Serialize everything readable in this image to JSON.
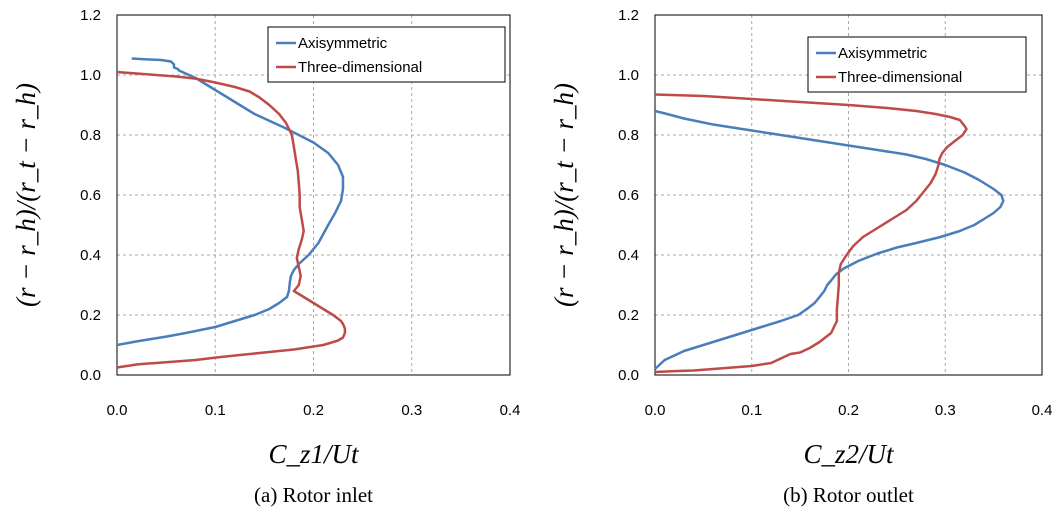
{
  "chart_data": [
    {
      "type": "line",
      "caption": "(a) Rotor inlet",
      "xlabel": "C_z1/Ut",
      "ylabel": "(r − r_h)/(r_t − r_h)",
      "xlim": [
        0,
        0.4
      ],
      "ylim": [
        0,
        1.2
      ],
      "xticks": [
        "0.0",
        "0.1",
        "0.2",
        "0.3",
        "0.4"
      ],
      "yticks": [
        "0.0",
        "0.2",
        "0.4",
        "0.6",
        "0.8",
        "1.0",
        "1.2"
      ],
      "grid": true,
      "legend_position": "top-right",
      "series": [
        {
          "name": "Axisymmetric",
          "color": "#4a7ebb",
          "points": [
            [
              0.015,
              1.055
            ],
            [
              0.03,
              1.052
            ],
            [
              0.045,
              1.05
            ],
            [
              0.055,
              1.045
            ],
            [
              0.058,
              1.035
            ],
            [
              0.058,
              1.025
            ],
            [
              0.062,
              1.02
            ],
            [
              0.063,
              1.015
            ],
            [
              0.07,
              1.005
            ],
            [
              0.08,
              0.99
            ],
            [
              0.1,
              0.95
            ],
            [
              0.12,
              0.91
            ],
            [
              0.14,
              0.87
            ],
            [
              0.17,
              0.825
            ],
            [
              0.2,
              0.775
            ],
            [
              0.215,
              0.74
            ],
            [
              0.225,
              0.7
            ],
            [
              0.23,
              0.66
            ],
            [
              0.23,
              0.62
            ],
            [
              0.228,
              0.58
            ],
            [
              0.222,
              0.54
            ],
            [
              0.215,
              0.5
            ],
            [
              0.21,
              0.47
            ],
            [
              0.205,
              0.44
            ],
            [
              0.195,
              0.4
            ],
            [
              0.185,
              0.37
            ],
            [
              0.18,
              0.35
            ],
            [
              0.177,
              0.33
            ],
            [
              0.176,
              0.31
            ],
            [
              0.175,
              0.28
            ],
            [
              0.173,
              0.26
            ],
            [
              0.165,
              0.24
            ],
            [
              0.155,
              0.22
            ],
            [
              0.14,
              0.2
            ],
            [
              0.12,
              0.18
            ],
            [
              0.1,
              0.16
            ],
            [
              0.07,
              0.14
            ],
            [
              0.05,
              0.128
            ],
            [
              0.02,
              0.112
            ],
            [
              0,
              0.1
            ]
          ]
        },
        {
          "name": "Three-dimensional",
          "color": "#be4b48",
          "points": [
            [
              0,
              1.01
            ],
            [
              0.02,
              1.005
            ],
            [
              0.04,
              1.0
            ],
            [
              0.06,
              0.995
            ],
            [
              0.08,
              0.988
            ],
            [
              0.1,
              0.975
            ],
            [
              0.12,
              0.96
            ],
            [
              0.135,
              0.945
            ],
            [
              0.145,
              0.925
            ],
            [
              0.155,
              0.9
            ],
            [
              0.165,
              0.87
            ],
            [
              0.172,
              0.84
            ],
            [
              0.178,
              0.8
            ],
            [
              0.18,
              0.76
            ],
            [
              0.182,
              0.72
            ],
            [
              0.184,
              0.68
            ],
            [
              0.185,
              0.64
            ],
            [
              0.186,
              0.6
            ],
            [
              0.186,
              0.56
            ],
            [
              0.188,
              0.52
            ],
            [
              0.19,
              0.48
            ],
            [
              0.188,
              0.45
            ],
            [
              0.185,
              0.42
            ],
            [
              0.183,
              0.39
            ],
            [
              0.185,
              0.36
            ],
            [
              0.187,
              0.33
            ],
            [
              0.185,
              0.3
            ],
            [
              0.18,
              0.28
            ],
            [
              0.19,
              0.26
            ],
            [
              0.2,
              0.24
            ],
            [
              0.21,
              0.22
            ],
            [
              0.22,
              0.2
            ],
            [
              0.228,
              0.18
            ],
            [
              0.23,
              0.17
            ],
            [
              0.232,
              0.155
            ],
            [
              0.232,
              0.14
            ],
            [
              0.23,
              0.125
            ],
            [
              0.225,
              0.115
            ],
            [
              0.21,
              0.1
            ],
            [
              0.18,
              0.085
            ],
            [
              0.15,
              0.075
            ],
            [
              0.12,
              0.065
            ],
            [
              0.1,
              0.058
            ],
            [
              0.08,
              0.05
            ],
            [
              0.06,
              0.045
            ],
            [
              0.04,
              0.04
            ],
            [
              0.03,
              0.038
            ],
            [
              0.02,
              0.035
            ],
            [
              0.01,
              0.03
            ],
            [
              0,
              0.025
            ]
          ]
        }
      ]
    },
    {
      "type": "line",
      "caption": "(b) Rotor outlet",
      "xlabel": "C_z2/Ut",
      "ylabel": "(r − r_h)/(r_t − r_h)",
      "xlim": [
        0,
        0.4
      ],
      "ylim": [
        0,
        1.2
      ],
      "xticks": [
        "0.0",
        "0.1",
        "0.2",
        "0.3",
        "0.4"
      ],
      "yticks": [
        "0.0",
        "0.2",
        "0.4",
        "0.6",
        "0.8",
        "1.0",
        "1.2"
      ],
      "grid": true,
      "legend_position": "top-right",
      "series": [
        {
          "name": "Axisymmetric",
          "color": "#4a7ebb",
          "points": [
            [
              0,
              0.88
            ],
            [
              0.01,
              0.872
            ],
            [
              0.03,
              0.855
            ],
            [
              0.06,
              0.835
            ],
            [
              0.09,
              0.82
            ],
            [
              0.12,
              0.805
            ],
            [
              0.15,
              0.79
            ],
            [
              0.18,
              0.775
            ],
            [
              0.2,
              0.765
            ],
            [
              0.23,
              0.75
            ],
            [
              0.26,
              0.735
            ],
            [
              0.28,
              0.72
            ],
            [
              0.3,
              0.7
            ],
            [
              0.32,
              0.675
            ],
            [
              0.335,
              0.65
            ],
            [
              0.35,
              0.62
            ],
            [
              0.358,
              0.6
            ],
            [
              0.36,
              0.58
            ],
            [
              0.357,
              0.56
            ],
            [
              0.35,
              0.54
            ],
            [
              0.34,
              0.52
            ],
            [
              0.33,
              0.5
            ],
            [
              0.315,
              0.48
            ],
            [
              0.295,
              0.46
            ],
            [
              0.27,
              0.44
            ],
            [
              0.25,
              0.425
            ],
            [
              0.23,
              0.405
            ],
            [
              0.21,
              0.38
            ],
            [
              0.195,
              0.355
            ],
            [
              0.187,
              0.335
            ],
            [
              0.182,
              0.315
            ],
            [
              0.178,
              0.3
            ],
            [
              0.175,
              0.28
            ],
            [
              0.17,
              0.26
            ],
            [
              0.165,
              0.24
            ],
            [
              0.157,
              0.22
            ],
            [
              0.148,
              0.2
            ],
            [
              0.13,
              0.18
            ],
            [
              0.11,
              0.16
            ],
            [
              0.09,
              0.14
            ],
            [
              0.07,
              0.12
            ],
            [
              0.05,
              0.1
            ],
            [
              0.03,
              0.08
            ],
            [
              0.02,
              0.065
            ],
            [
              0.01,
              0.05
            ],
            [
              0,
              0.02
            ]
          ]
        },
        {
          "name": "Three-dimensional",
          "color": "#be4b48",
          "points": [
            [
              0,
              0.935
            ],
            [
              0.05,
              0.93
            ],
            [
              0.1,
              0.92
            ],
            [
              0.15,
              0.91
            ],
            [
              0.2,
              0.9
            ],
            [
              0.24,
              0.89
            ],
            [
              0.27,
              0.88
            ],
            [
              0.29,
              0.87
            ],
            [
              0.305,
              0.86
            ],
            [
              0.315,
              0.85
            ],
            [
              0.32,
              0.83
            ],
            [
              0.322,
              0.82
            ],
            [
              0.318,
              0.8
            ],
            [
              0.31,
              0.78
            ],
            [
              0.302,
              0.76
            ],
            [
              0.297,
              0.74
            ],
            [
              0.294,
              0.72
            ],
            [
              0.293,
              0.7
            ],
            [
              0.29,
              0.67
            ],
            [
              0.285,
              0.64
            ],
            [
              0.28,
              0.62
            ],
            [
              0.27,
              0.58
            ],
            [
              0.26,
              0.55
            ],
            [
              0.245,
              0.52
            ],
            [
              0.23,
              0.49
            ],
            [
              0.215,
              0.46
            ],
            [
              0.205,
              0.43
            ],
            [
              0.198,
              0.4
            ],
            [
              0.192,
              0.37
            ],
            [
              0.19,
              0.34
            ],
            [
              0.19,
              0.3
            ],
            [
              0.189,
              0.26
            ],
            [
              0.188,
              0.22
            ],
            [
              0.188,
              0.18
            ],
            [
              0.182,
              0.14
            ],
            [
              0.17,
              0.11
            ],
            [
              0.16,
              0.09
            ],
            [
              0.15,
              0.075
            ],
            [
              0.14,
              0.07
            ],
            [
              0.12,
              0.04
            ],
            [
              0.1,
              0.03
            ],
            [
              0.08,
              0.025
            ],
            [
              0.06,
              0.02
            ],
            [
              0.04,
              0.015
            ],
            [
              0.02,
              0.013
            ],
            [
              0,
              0.01
            ]
          ]
        }
      ]
    }
  ]
}
